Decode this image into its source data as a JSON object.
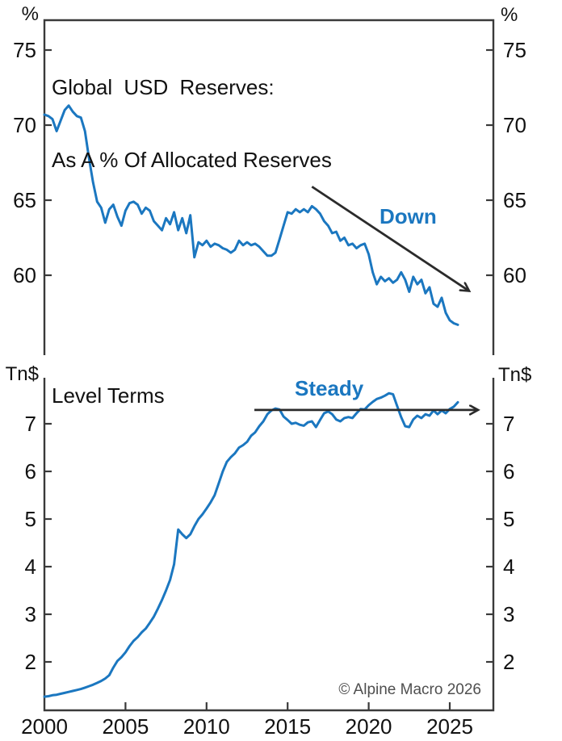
{
  "figure": {
    "copyright": "© Alpine Macro 2026"
  },
  "colors": {
    "line": "#1b77c0",
    "annotation_text": "#1b77c0",
    "axis": "#3a3a3a",
    "arrow": "#2b2b2b",
    "text": "#111111",
    "muted": "#4f4f4f"
  },
  "chart_data": [
    {
      "id": "usd-share-pct",
      "type": "line",
      "title_lines": [
        "Global USD Reserves:",
        "As A % Of Allocated Reserves"
      ],
      "unit_left": "%",
      "unit_right": "%",
      "x_range": [
        2000,
        2027.7
      ],
      "x_ticks": [
        2000,
        2005,
        2010,
        2015,
        2020,
        2025
      ],
      "show_x_labels": false,
      "y_ticks": [
        60,
        65,
        70,
        75
      ],
      "grid": false,
      "annotations": [
        {
          "label": "Down",
          "arrow": {
            "from": [
              2016.5,
              65.9
            ],
            "to": [
              2026.2,
              58.95
            ]
          }
        }
      ],
      "points": [
        [
          2000,
          70.7
        ],
        [
          2000.25,
          70.6
        ],
        [
          2000.5,
          70.4
        ],
        [
          2000.75,
          69.6
        ],
        [
          2001,
          70.3
        ],
        [
          2001.25,
          71.0
        ],
        [
          2001.5,
          71.3
        ],
        [
          2001.75,
          70.9
        ],
        [
          2002,
          70.6
        ],
        [
          2002.25,
          70.5
        ],
        [
          2002.5,
          69.6
        ],
        [
          2002.75,
          67.8
        ],
        [
          2003,
          66.2
        ],
        [
          2003.25,
          64.9
        ],
        [
          2003.5,
          64.5
        ],
        [
          2003.75,
          63.5
        ],
        [
          2004,
          64.4
        ],
        [
          2004.25,
          64.7
        ],
        [
          2004.5,
          63.9
        ],
        [
          2004.75,
          63.3
        ],
        [
          2005,
          64.3
        ],
        [
          2005.25,
          64.8
        ],
        [
          2005.5,
          64.9
        ],
        [
          2005.75,
          64.7
        ],
        [
          2006,
          64.1
        ],
        [
          2006.25,
          64.5
        ],
        [
          2006.5,
          64.3
        ],
        [
          2006.75,
          63.6
        ],
        [
          2007,
          63.3
        ],
        [
          2007.25,
          63.0
        ],
        [
          2007.5,
          63.8
        ],
        [
          2007.75,
          63.4
        ],
        [
          2008,
          64.2
        ],
        [
          2008.25,
          63.0
        ],
        [
          2008.5,
          63.8
        ],
        [
          2008.75,
          62.8
        ],
        [
          2009,
          64.0
        ],
        [
          2009.25,
          61.2
        ],
        [
          2009.5,
          62.2
        ],
        [
          2009.75,
          62.0
        ],
        [
          2010,
          62.3
        ],
        [
          2010.25,
          61.9
        ],
        [
          2010.5,
          62.1
        ],
        [
          2010.75,
          62.0
        ],
        [
          2011,
          61.8
        ],
        [
          2011.25,
          61.7
        ],
        [
          2011.5,
          61.5
        ],
        [
          2011.75,
          61.7
        ],
        [
          2012,
          62.3
        ],
        [
          2012.25,
          62.0
        ],
        [
          2012.5,
          62.2
        ],
        [
          2012.75,
          62.0
        ],
        [
          2013,
          62.1
        ],
        [
          2013.25,
          61.9
        ],
        [
          2013.5,
          61.6
        ],
        [
          2013.75,
          61.3
        ],
        [
          2014,
          61.3
        ],
        [
          2014.25,
          61.5
        ],
        [
          2014.5,
          62.4
        ],
        [
          2014.75,
          63.3
        ],
        [
          2015,
          64.2
        ],
        [
          2015.25,
          64.1
        ],
        [
          2015.5,
          64.4
        ],
        [
          2015.75,
          64.2
        ],
        [
          2016,
          64.4
        ],
        [
          2016.25,
          64.2
        ],
        [
          2016.5,
          64.6
        ],
        [
          2016.75,
          64.4
        ],
        [
          2017,
          64.1
        ],
        [
          2017.25,
          63.6
        ],
        [
          2017.5,
          63.3
        ],
        [
          2017.75,
          62.8
        ],
        [
          2018,
          62.9
        ],
        [
          2018.25,
          62.3
        ],
        [
          2018.5,
          62.5
        ],
        [
          2018.75,
          62.0
        ],
        [
          2019,
          62.1
        ],
        [
          2019.25,
          61.8
        ],
        [
          2019.5,
          62.0
        ],
        [
          2019.75,
          62.1
        ],
        [
          2020,
          61.4
        ],
        [
          2020.25,
          60.2
        ],
        [
          2020.5,
          59.4
        ],
        [
          2020.75,
          59.9
        ],
        [
          2021,
          59.6
        ],
        [
          2021.25,
          59.8
        ],
        [
          2021.5,
          59.5
        ],
        [
          2021.75,
          59.7
        ],
        [
          2022,
          60.2
        ],
        [
          2022.25,
          59.7
        ],
        [
          2022.5,
          58.9
        ],
        [
          2022.75,
          59.9
        ],
        [
          2023,
          59.4
        ],
        [
          2023.25,
          59.7
        ],
        [
          2023.5,
          58.8
        ],
        [
          2023.75,
          59.2
        ],
        [
          2024,
          58.1
        ],
        [
          2024.25,
          57.9
        ],
        [
          2024.5,
          58.5
        ],
        [
          2024.75,
          57.5
        ],
        [
          2025,
          57.0
        ],
        [
          2025.25,
          56.8
        ],
        [
          2025.5,
          56.7
        ]
      ]
    },
    {
      "id": "usd-level-tn",
      "type": "line",
      "title_lines": [
        "Level Terms"
      ],
      "unit_left": "Tn$",
      "unit_right": "Tn$",
      "x_range": [
        2000,
        2027.7
      ],
      "x_ticks": [
        2000,
        2005,
        2010,
        2015,
        2020,
        2025
      ],
      "show_x_labels": true,
      "y_ticks": [
        2,
        3,
        4,
        5,
        6,
        7
      ],
      "grid": false,
      "annotations": [
        {
          "label": "Steady",
          "arrow": {
            "from": [
              2012.95,
              7.29
            ],
            "to": [
              2026.75,
              7.29
            ]
          }
        }
      ],
      "points": [
        [
          2000,
          1.27
        ],
        [
          2000.25,
          1.28
        ],
        [
          2000.5,
          1.3
        ],
        [
          2000.75,
          1.31
        ],
        [
          2001,
          1.33
        ],
        [
          2001.25,
          1.35
        ],
        [
          2001.5,
          1.37
        ],
        [
          2001.75,
          1.39
        ],
        [
          2002,
          1.41
        ],
        [
          2002.25,
          1.43
        ],
        [
          2002.5,
          1.46
        ],
        [
          2002.75,
          1.49
        ],
        [
          2003,
          1.52
        ],
        [
          2003.25,
          1.56
        ],
        [
          2003.5,
          1.6
        ],
        [
          2003.75,
          1.65
        ],
        [
          2004,
          1.72
        ],
        [
          2004.25,
          1.88
        ],
        [
          2004.5,
          2.02
        ],
        [
          2004.75,
          2.1
        ],
        [
          2005,
          2.2
        ],
        [
          2005.25,
          2.33
        ],
        [
          2005.5,
          2.44
        ],
        [
          2005.75,
          2.52
        ],
        [
          2006,
          2.62
        ],
        [
          2006.25,
          2.7
        ],
        [
          2006.5,
          2.82
        ],
        [
          2006.75,
          2.95
        ],
        [
          2007,
          3.12
        ],
        [
          2007.25,
          3.3
        ],
        [
          2007.5,
          3.5
        ],
        [
          2007.75,
          3.72
        ],
        [
          2008,
          4.05
        ],
        [
          2008.25,
          4.78
        ],
        [
          2008.5,
          4.68
        ],
        [
          2008.75,
          4.6
        ],
        [
          2009,
          4.68
        ],
        [
          2009.25,
          4.85
        ],
        [
          2009.5,
          5.0
        ],
        [
          2009.75,
          5.1
        ],
        [
          2010,
          5.22
        ],
        [
          2010.25,
          5.35
        ],
        [
          2010.5,
          5.5
        ],
        [
          2010.75,
          5.75
        ],
        [
          2011,
          6.0
        ],
        [
          2011.25,
          6.2
        ],
        [
          2011.5,
          6.3
        ],
        [
          2011.75,
          6.38
        ],
        [
          2012,
          6.5
        ],
        [
          2012.25,
          6.55
        ],
        [
          2012.5,
          6.62
        ],
        [
          2012.75,
          6.75
        ],
        [
          2013,
          6.82
        ],
        [
          2013.25,
          6.95
        ],
        [
          2013.5,
          7.05
        ],
        [
          2013.75,
          7.2
        ],
        [
          2014,
          7.28
        ],
        [
          2014.25,
          7.32
        ],
        [
          2014.5,
          7.3
        ],
        [
          2014.75,
          7.15
        ],
        [
          2015,
          7.08
        ],
        [
          2015.25,
          7.0
        ],
        [
          2015.5,
          7.02
        ],
        [
          2015.75,
          6.98
        ],
        [
          2016,
          6.96
        ],
        [
          2016.25,
          7.03
        ],
        [
          2016.5,
          7.05
        ],
        [
          2016.75,
          6.93
        ],
        [
          2017,
          7.08
        ],
        [
          2017.25,
          7.22
        ],
        [
          2017.5,
          7.26
        ],
        [
          2017.75,
          7.2
        ],
        [
          2018,
          7.09
        ],
        [
          2018.25,
          7.05
        ],
        [
          2018.5,
          7.12
        ],
        [
          2018.75,
          7.14
        ],
        [
          2019,
          7.12
        ],
        [
          2019.25,
          7.22
        ],
        [
          2019.5,
          7.31
        ],
        [
          2019.75,
          7.3
        ],
        [
          2020,
          7.39
        ],
        [
          2020.25,
          7.46
        ],
        [
          2020.5,
          7.52
        ],
        [
          2020.75,
          7.55
        ],
        [
          2021,
          7.59
        ],
        [
          2021.25,
          7.64
        ],
        [
          2021.5,
          7.62
        ],
        [
          2021.75,
          7.38
        ],
        [
          2022,
          7.14
        ],
        [
          2022.25,
          6.95
        ],
        [
          2022.5,
          6.93
        ],
        [
          2022.75,
          7.09
        ],
        [
          2023,
          7.17
        ],
        [
          2023.25,
          7.12
        ],
        [
          2023.5,
          7.2
        ],
        [
          2023.75,
          7.17
        ],
        [
          2024,
          7.28
        ],
        [
          2024.25,
          7.2
        ],
        [
          2024.5,
          7.28
        ],
        [
          2024.75,
          7.22
        ],
        [
          2025,
          7.31
        ],
        [
          2025.25,
          7.36
        ],
        [
          2025.5,
          7.45
        ]
      ]
    }
  ]
}
